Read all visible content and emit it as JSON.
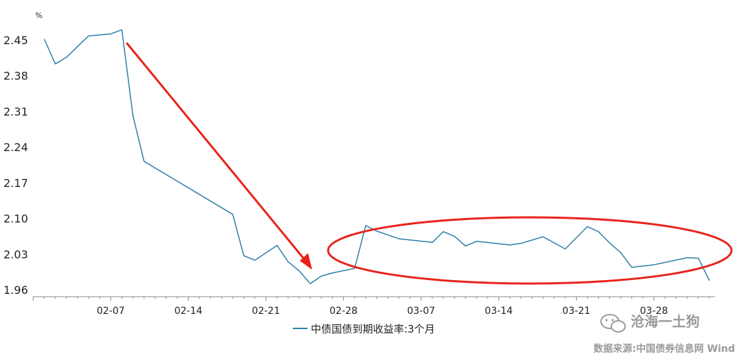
{
  "chart_data": {
    "type": "line",
    "unit_label": "%",
    "y_ticks": [
      "2.45",
      "2.38",
      "2.31",
      "2.24",
      "2.17",
      "2.10",
      "2.03",
      "1.96"
    ],
    "ylim": [
      1.96,
      2.45
    ],
    "x_ticks": [
      "02-07",
      "02-14",
      "02-21",
      "02-28",
      "03-07",
      "03-14",
      "03-21",
      "03-28"
    ],
    "grid": false,
    "legend_position": "bottom-center",
    "series": [
      {
        "name": "中债国债到期收益率:3个月",
        "color": "#2e7fa8",
        "x": [
          1.0,
          2.0,
          3.0,
          5.0,
          7.0,
          8.0,
          9.0,
          10.0,
          18.0,
          19.0,
          20.0,
          22.0,
          23.0,
          24.0,
          25.0,
          26.0,
          27.0,
          29.0,
          30.0,
          31.0,
          33.0,
          36.0,
          37.0,
          38.0,
          39.0,
          40.0,
          43.0,
          44.0,
          46.0,
          47.0,
          48.0,
          50.0,
          51.0,
          52.0,
          53.0,
          54.0,
          56.0,
          59.0,
          60.0,
          61.0
        ],
        "values": [
          2.452,
          2.403,
          2.416,
          2.458,
          2.462,
          2.47,
          2.302,
          2.212,
          2.108,
          2.027,
          2.018,
          2.047,
          2.015,
          1.997,
          1.972,
          1.987,
          1.993,
          2.002,
          2.086,
          2.075,
          2.06,
          2.053,
          2.074,
          2.065,
          2.046,
          2.055,
          2.048,
          2.051,
          2.064,
          2.052,
          2.04,
          2.084,
          2.074,
          2.052,
          2.033,
          2.004,
          2.009,
          2.023,
          2.022,
          1.978
        ]
      }
    ]
  },
  "annotations": {
    "arrow_color": "#e8231a",
    "ellipse_color": "#e8231a"
  },
  "watermark": {
    "icon": "wechat-icon",
    "text": "沧海一土狗"
  },
  "source": {
    "text": "数据来源:中国债券信息网 Wind"
  }
}
